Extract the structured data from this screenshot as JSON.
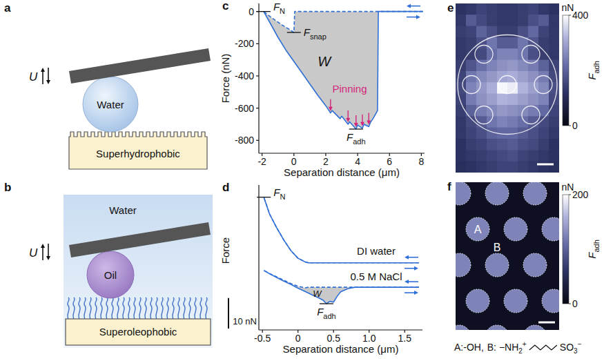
{
  "diagrams": [
    {
      "panel": "a",
      "actuation": "U",
      "droplet": "Water",
      "surface": "Superhydrophobic"
    },
    {
      "panel": "b",
      "actuation": "U",
      "medium": "Water",
      "droplet": "Oil",
      "surface": "Superoleophobic"
    }
  ],
  "chart_data": [
    {
      "panel": "c",
      "type": "line",
      "x_label": "Separation distance (μm)",
      "y_label": "Force (nN)",
      "xlim": [
        -2.2,
        8.2
      ],
      "ylim": [
        -880,
        50
      ],
      "xticks": [
        -2,
        0,
        2,
        4,
        6,
        8
      ],
      "yticks": [
        0,
        -200,
        -400,
        -600,
        -800
      ],
      "series": [
        {
          "line_style": "dashed",
          "color": "#2f6fd6",
          "x": [
            8.1,
            7,
            6,
            4,
            2,
            0.05,
            0,
            -0.3,
            -0.8,
            -1.3,
            -1.9
          ],
          "values": [
            0,
            0,
            0,
            0,
            0,
            0,
            -130,
            -110,
            -80,
            -45,
            0
          ]
        },
        {
          "line_style": "solid",
          "color": "#2f6fd6",
          "x": [
            -1.9,
            -1.5,
            -1,
            -0.5,
            0,
            0.5,
            1,
            1.5,
            2,
            2.3,
            2.4,
            2.9,
            3.0,
            3.4,
            3.5,
            3.9,
            4.0,
            4.3,
            4.4,
            4.7,
            4.8,
            5.0,
            5.25,
            5.3,
            6,
            7,
            8.1
          ],
          "values": [
            0,
            -70,
            -160,
            -240,
            -310,
            -380,
            -450,
            -520,
            -585,
            -630,
            -615,
            -665,
            -650,
            -700,
            -685,
            -730,
            -705,
            -725,
            -700,
            -715,
            -690,
            -660,
            -615,
            0,
            0,
            0,
            0
          ]
        }
      ],
      "annotations": [
        {
          "text": "F",
          "sub": "N",
          "x": -1.9,
          "y": 0
        },
        {
          "text": "F",
          "sub": "snap",
          "x": 0,
          "y": -130
        },
        {
          "text": "W",
          "x": 1.9,
          "y": -310
        },
        {
          "text": "Pinning",
          "x": 3.5,
          "y": -480,
          "color": "#d4267a",
          "targets": [
            [
              2.3,
              -630
            ],
            [
              3.4,
              -700
            ],
            [
              3.9,
              -730
            ],
            [
              4.3,
              -725
            ],
            [
              4.7,
              -715
            ]
          ]
        },
        {
          "text": "F",
          "sub": "adh",
          "x": 3.9,
          "y": -730
        }
      ]
    },
    {
      "panel": "d",
      "type": "line",
      "x_label": "Separation distance (μm)",
      "y_label": "Force",
      "xlim": [
        -0.55,
        1.75
      ],
      "ylim": [
        -14,
        33.5
      ],
      "xticks": [
        -0.5,
        0,
        0.5,
        {
          "value": 1,
          "label": "1.0"
        },
        1.5
      ],
      "tick_labels": "x",
      "series": [
        {
          "line_style": "dashed",
          "color": "#2f6fd6",
          "x": [
            1.7,
            0.15,
            0.1,
            0,
            -0.1,
            -0.2,
            -0.3,
            -0.4,
            -0.48
          ],
          "values": [
            8,
            8,
            8.3,
            9.5,
            12,
            15.5,
            19.5,
            24,
            29.5
          ]
        },
        {
          "line_style": "solid",
          "color": "#2f6fd6",
          "x": [
            -0.48,
            -0.4,
            -0.3,
            -0.2,
            -0.1,
            0,
            0.1,
            0.15,
            1.7
          ],
          "values": [
            29.5,
            24,
            19.5,
            15.5,
            12,
            9.5,
            8.3,
            8,
            8
          ]
        },
        {
          "line_style": "dashed",
          "color": "#2f6fd6",
          "x": [
            1.7,
            0.15,
            0.1,
            0,
            -0.1,
            -0.2,
            -0.3,
            -0.4,
            -0.48
          ],
          "values": [
            0,
            0,
            -0.2,
            0.3,
            1.2,
            2.3,
            3.4,
            4.5,
            5.5
          ]
        },
        {
          "line_style": "solid",
          "color": "#2f6fd6",
          "x": [
            -0.48,
            -0.4,
            -0.3,
            -0.2,
            -0.1,
            0,
            0.1,
            0.2,
            0.3,
            0.35,
            0.4,
            0.45,
            0.5,
            0.55,
            0.6,
            0.7,
            0.8,
            1.7
          ],
          "values": [
            5.5,
            4.4,
            3.2,
            2,
            0.9,
            -0.3,
            -1.4,
            -2.5,
            -3.6,
            -4.2,
            -5.4,
            -4.6,
            -4.9,
            -3,
            -1.5,
            -0.5,
            0,
            0
          ]
        }
      ],
      "annotations": [
        {
          "text": "F",
          "sub": "N",
          "x": -0.48,
          "y": 29.5
        },
        {
          "text": "DI water",
          "x": 1.1,
          "y": 12
        },
        {
          "text": "0.5 M NaCl",
          "x": 1.1,
          "y": 3.5
        },
        {
          "text": "W",
          "x": 0.27,
          "y": -2.2
        },
        {
          "text": "F",
          "sub": "adh",
          "x": 0.4,
          "y": -5.4
        }
      ],
      "scale_bar": {
        "value": 10,
        "label": "10 nN"
      }
    },
    {
      "panel": "e",
      "type": "heatmap",
      "cells": [
        [
          120,
          130,
          150,
          140,
          130,
          130,
          140,
          150,
          130,
          120
        ],
        [
          130,
          190,
          160,
          140,
          130,
          130,
          140,
          170,
          190,
          130
        ],
        [
          140,
          150,
          200,
          170,
          140,
          140,
          170,
          210,
          150,
          130
        ],
        [
          130,
          140,
          170,
          230,
          190,
          190,
          230,
          180,
          140,
          130
        ],
        [
          130,
          140,
          160,
          220,
          250,
          250,
          230,
          170,
          140,
          130
        ],
        [
          140,
          180,
          220,
          250,
          270,
          280,
          260,
          240,
          200,
          150
        ],
        [
          150,
          230,
          260,
          280,
          300,
          310,
          290,
          270,
          240,
          160
        ],
        [
          160,
          250,
          280,
          310,
          390,
          380,
          320,
          290,
          260,
          170
        ],
        [
          150,
          240,
          270,
          290,
          320,
          310,
          290,
          270,
          250,
          160
        ],
        [
          140,
          200,
          240,
          260,
          280,
          270,
          260,
          240,
          210,
          150
        ],
        [
          130,
          160,
          190,
          230,
          250,
          240,
          220,
          190,
          160,
          140
        ],
        [
          130,
          150,
          170,
          200,
          210,
          210,
          190,
          170,
          150,
          130
        ],
        [
          120,
          140,
          150,
          170,
          180,
          190,
          170,
          160,
          140,
          120
        ],
        [
          120,
          130,
          140,
          150,
          160,
          170,
          150,
          140,
          130,
          120
        ],
        [
          110,
          120,
          130,
          140,
          150,
          150,
          140,
          130,
          120,
          110
        ]
      ],
      "colorbar": {
        "label": "F",
        "sub": "adh",
        "unit": "nN",
        "range": [
          0,
          400
        ],
        "ticks": [
          0,
          400
        ]
      }
    },
    {
      "panel": "f",
      "type": "heatmap",
      "regions": [
        {
          "label": "A",
          "value": 125
        },
        {
          "label": "B",
          "value": 10
        }
      ],
      "colorbar": {
        "label": "F",
        "sub": "adh",
        "unit": "nN",
        "range": [
          0,
          200
        ],
        "ticks": [
          0,
          200
        ]
      },
      "caption": {
        "a": "A:-OH,",
        "b": "B: −NH",
        "b_sub": "2",
        "b_sup": "+",
        "end": "SO",
        "end_sub": "3",
        "end_sup": "−"
      }
    }
  ]
}
